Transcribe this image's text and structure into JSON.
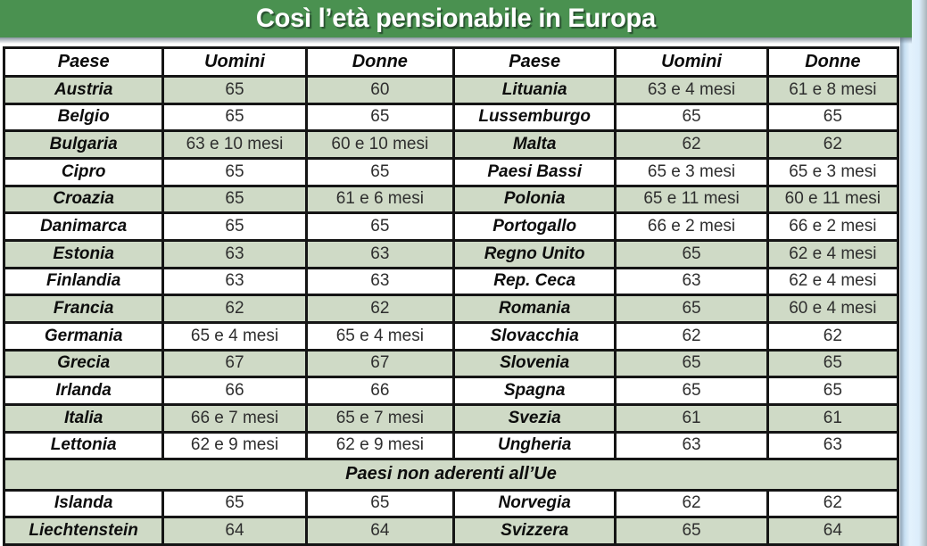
{
  "header": {
    "title": "Così l’età pensionabile in Europa"
  },
  "table": {
    "column_headers": [
      "Paese",
      "Uomini",
      "Donne",
      "Paese",
      "Uomini",
      "Donne"
    ]
  },
  "colors": {
    "band_green": "#4a9150",
    "row_green": "#cfdac6",
    "border_black": "#151515",
    "title_white": "#ffffff",
    "page_edge_blue": "#dcedfb",
    "text_dark": "#1c1c1c"
  },
  "chart_data": {
    "type": "table",
    "title": "Così l’età pensionabile in Europa",
    "columns": [
      "Paese",
      "Uomini",
      "Donne"
    ],
    "section_label": "Paesi non aderenti all’Ue",
    "eu_countries": [
      {
        "paese": "Austria",
        "uomini": "65",
        "donne": "60"
      },
      {
        "paese": "Belgio",
        "uomini": "65",
        "donne": "65"
      },
      {
        "paese": "Bulgaria",
        "uomini": "63 e 10 mesi",
        "donne": "60 e 10 mesi"
      },
      {
        "paese": "Cipro",
        "uomini": "65",
        "donne": "65"
      },
      {
        "paese": "Croazia",
        "uomini": "65",
        "donne": "61 e 6 mesi"
      },
      {
        "paese": "Danimarca",
        "uomini": "65",
        "donne": "65"
      },
      {
        "paese": "Estonia",
        "uomini": "63",
        "donne": "63"
      },
      {
        "paese": "Finlandia",
        "uomini": "63",
        "donne": "63"
      },
      {
        "paese": "Francia",
        "uomini": "62",
        "donne": "62"
      },
      {
        "paese": "Germania",
        "uomini": "65 e 4 mesi",
        "donne": "65 e 4 mesi"
      },
      {
        "paese": "Grecia",
        "uomini": "67",
        "donne": "67"
      },
      {
        "paese": "Irlanda",
        "uomini": "66",
        "donne": "66"
      },
      {
        "paese": "Italia",
        "uomini": "66 e 7 mesi",
        "donne": "65 e 7 mesi"
      },
      {
        "paese": "Lettonia",
        "uomini": "62 e 9 mesi",
        "donne": "62 e 9 mesi"
      },
      {
        "paese": "Lituania",
        "uomini": "63 e 4 mesi",
        "donne": "61 e 8 mesi"
      },
      {
        "paese": "Lussemburgo",
        "uomini": "65",
        "donne": "65"
      },
      {
        "paese": "Malta",
        "uomini": "62",
        "donne": "62"
      },
      {
        "paese": "Paesi Bassi",
        "uomini": "65 e 3 mesi",
        "donne": "65 e 3 mesi"
      },
      {
        "paese": "Polonia",
        "uomini": "65 e 11 mesi",
        "donne": "60 e 11 mesi"
      },
      {
        "paese": "Portogallo",
        "uomini": "66 e 2 mesi",
        "donne": "66 e 2 mesi"
      },
      {
        "paese": "Regno Unito",
        "uomini": "65",
        "donne": "62 e 4 mesi"
      },
      {
        "paese": "Rep. Ceca",
        "uomini": "63",
        "donne": "62 e 4 mesi"
      },
      {
        "paese": "Romania",
        "uomini": "65",
        "donne": "60 e 4 mesi"
      },
      {
        "paese": "Slovacchia",
        "uomini": "62",
        "donne": "62"
      },
      {
        "paese": "Slovenia",
        "uomini": "65",
        "donne": "65"
      },
      {
        "paese": "Spagna",
        "uomini": "65",
        "donne": "65"
      },
      {
        "paese": "Svezia",
        "uomini": "61",
        "donne": "61"
      },
      {
        "paese": "Ungheria",
        "uomini": "63",
        "donne": "63"
      }
    ],
    "non_eu_countries": [
      {
        "paese": "Islanda",
        "uomini": "65",
        "donne": "65"
      },
      {
        "paese": "Liechtenstein",
        "uomini": "64",
        "donne": "64"
      },
      {
        "paese": "Norvegia",
        "uomini": "62",
        "donne": "62"
      },
      {
        "paese": "Svizzera",
        "uomini": "65",
        "donne": "64"
      }
    ]
  }
}
